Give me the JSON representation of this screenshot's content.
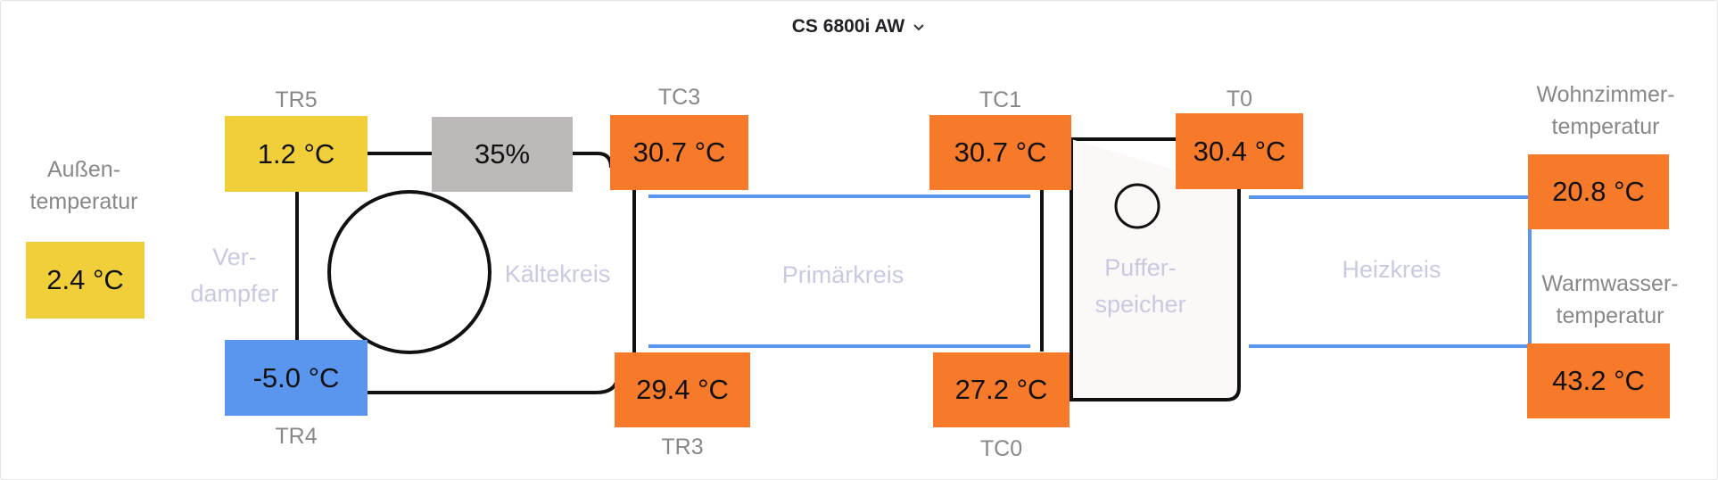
{
  "header": {
    "title": "CS 6800i AW",
    "dropdown_icon": "chevron-down-icon"
  },
  "colors": {
    "hot": "#f77a2a",
    "warm": "#f1cf3a",
    "cold": "#5a95ee",
    "neutral": "#bdb9b8",
    "pipe": "#5a95ee",
    "circuit_text": "#c9c9e2",
    "label_text": "#888888"
  },
  "outdoor": {
    "label": "Außen-\ntemperatur",
    "value": "2.4 °C"
  },
  "sensors": {
    "tr5": {
      "label": "TR5",
      "value": "1.2 °C"
    },
    "tr4": {
      "label": "TR4",
      "value": "-5.0 °C"
    },
    "compressor": {
      "value": "35%"
    },
    "tc3": {
      "label": "TC3",
      "value": "30.7 °C"
    },
    "tr3": {
      "label": "TR3",
      "value": "29.4 °C"
    },
    "tc1": {
      "label": "TC1",
      "value": "30.7 °C"
    },
    "tc0": {
      "label": "TC0",
      "value": "27.2 °C"
    },
    "t0": {
      "label": "T0",
      "value": "30.4 °C"
    },
    "room": {
      "label": "Wohnzimmer-\ntemperatur",
      "value": "20.8 °C"
    },
    "dhw": {
      "label": "Warmwasser-\ntemperatur",
      "value": "43.2 °C"
    }
  },
  "circuits": {
    "evaporator": "Ver-\ndampfer",
    "refrigerant": "Kältekreis",
    "primary": "Primärkreis",
    "buffer": "Puffer-\nspeicher",
    "heating": "Heizkreis"
  }
}
